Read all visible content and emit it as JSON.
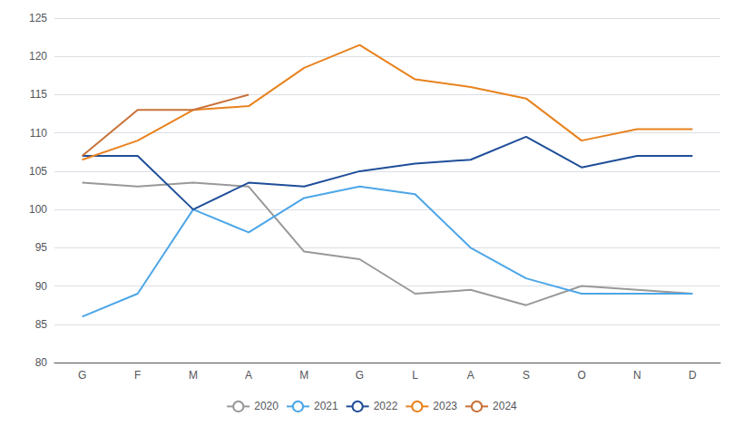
{
  "chart_data": {
    "type": "line",
    "categories": [
      "G",
      "F",
      "M",
      "A",
      "M",
      "G",
      "L",
      "A",
      "S",
      "O",
      "N",
      "D"
    ],
    "series": [
      {
        "name": "2020",
        "color": "#999999",
        "values": [
          103.5,
          103.0,
          103.5,
          103.0,
          94.5,
          93.5,
          89.0,
          89.5,
          87.5,
          90.0,
          89.5,
          89.0
        ]
      },
      {
        "name": "2021",
        "color": "#4da6e8",
        "values": [
          86.0,
          89.0,
          100.0,
          97.0,
          101.5,
          103.0,
          102.0,
          95.0,
          91.0,
          89.0,
          89.0,
          89.0
        ]
      },
      {
        "name": "2022",
        "color": "#1f4e99",
        "values": [
          107.0,
          107.0,
          100.0,
          103.5,
          103.0,
          105.0,
          106.0,
          106.5,
          109.5,
          105.5,
          107.0,
          107.0
        ]
      },
      {
        "name": "2023",
        "color": "#e8821e",
        "values": [
          106.5,
          109.0,
          113.0,
          113.5,
          118.5,
          121.5,
          117.0,
          116.0,
          114.5,
          109.0,
          110.5,
          110.5
        ]
      },
      {
        "name": "2024",
        "color": "#c87137",
        "values": [
          107.0,
          113.0,
          113.0,
          115.0,
          null,
          null,
          null,
          null,
          null,
          null,
          null,
          null
        ]
      }
    ],
    "ylim": [
      80,
      125
    ],
    "yticks": [
      80,
      85,
      90,
      95,
      100,
      105,
      110,
      115,
      120,
      125
    ],
    "grid": true,
    "legend": "bottom"
  }
}
